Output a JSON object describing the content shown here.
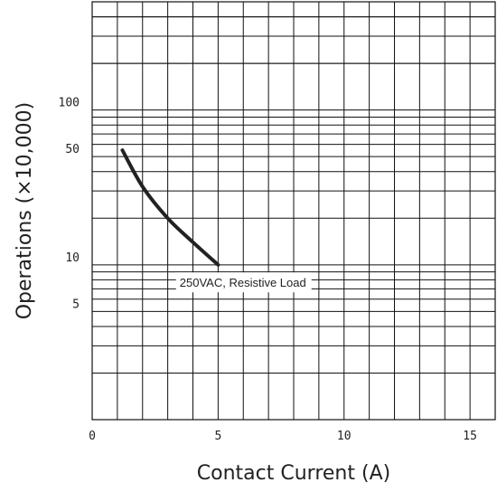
{
  "chart_data": {
    "type": "line",
    "xlabel": "Contact Current (A)",
    "ylabel": "Operations (×10,000)",
    "x_range": [
      0,
      16
    ],
    "y_range": [
      1,
      500
    ],
    "y_scale": "log",
    "grid": true,
    "x_ticks": [
      "0",
      "5",
      "10",
      "15"
    ],
    "x_tick_values": [
      0,
      5,
      10,
      15
    ],
    "y_ticks": [
      "100",
      "50",
      "10",
      "5"
    ],
    "y_tick_values": [
      100,
      50,
      10,
      5
    ],
    "series": [
      {
        "x": [
          1.2,
          2,
          3,
          4,
          5
        ],
        "y": [
          55,
          32,
          20,
          14,
          10
        ],
        "color": "#222222"
      }
    ],
    "annotations": [
      {
        "text": "250VAC, Resistive Load",
        "x": 3.4,
        "y": 7.6
      }
    ]
  }
}
